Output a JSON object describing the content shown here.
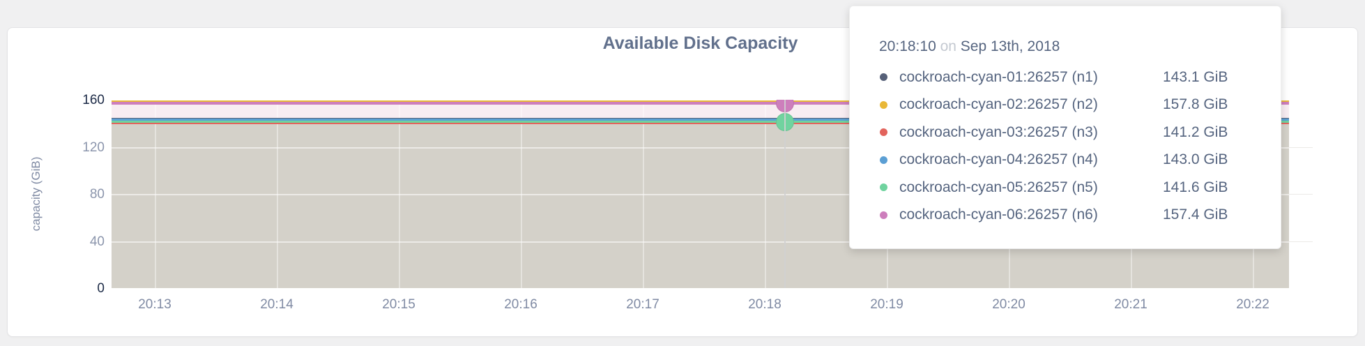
{
  "chart": {
    "title": "Available Disk Capacity",
    "ylabel": "capacity (GiB)"
  },
  "chart_data": {
    "type": "area",
    "title": "Available Disk Capacity",
    "xlabel": "",
    "ylabel": "capacity (GiB)",
    "ylim": [
      0,
      160
    ],
    "y_ticks": [
      160,
      120,
      80,
      40,
      0
    ],
    "x_ticks": [
      "20:13",
      "20:14",
      "20:15",
      "20:16",
      "20:17",
      "20:18",
      "20:19",
      "20:20",
      "20:21",
      "20:22"
    ],
    "grid": true,
    "legend_position": "tooltip-only",
    "series": [
      {
        "name": "cockroach-cyan-01:26257 (n1)",
        "node": "n1",
        "color": "#566078",
        "value_gib": 143.1
      },
      {
        "name": "cockroach-cyan-02:26257 (n2)",
        "node": "n2",
        "color": "#e9b838",
        "value_gib": 157.8
      },
      {
        "name": "cockroach-cyan-03:26257 (n3)",
        "node": "n3",
        "color": "#e2635c",
        "value_gib": 141.2
      },
      {
        "name": "cockroach-cyan-04:26257 (n4)",
        "node": "n4",
        "color": "#5b9fd4",
        "value_gib": 143.0
      },
      {
        "name": "cockroach-cyan-05:26257 (n5)",
        "node": "n5",
        "color": "#70d39f",
        "value_gib": 141.6
      },
      {
        "name": "cockroach-cyan-06:26257 (n6)",
        "node": "n6",
        "color": "#cd7ebc",
        "value_gib": 157.4
      }
    ],
    "series_shape": "flat-constant-across-window",
    "hover": {
      "time": "20:18:10",
      "date": "Sep 13th, 2018",
      "x_tick": "20:18",
      "seconds_past_tick": 10,
      "marker_series": [
        "cockroach-cyan-06:26257 (n6)",
        "cockroach-cyan-05:26257 (n5)"
      ]
    }
  },
  "tooltip": {
    "time": "20:18:10",
    "on_word": "on",
    "date": "Sep 13th, 2018",
    "rows": [
      {
        "label": "cockroach-cyan-01:26257 (n1)",
        "value": "143.1 GiB",
        "color": "#566078"
      },
      {
        "label": "cockroach-cyan-02:26257 (n2)",
        "value": "157.8 GiB",
        "color": "#e9b838"
      },
      {
        "label": "cockroach-cyan-03:26257 (n3)",
        "value": "141.2 GiB",
        "color": "#e2635c"
      },
      {
        "label": "cockroach-cyan-04:26257 (n4)",
        "value": "143.0 GiB",
        "color": "#5b9fd4"
      },
      {
        "label": "cockroach-cyan-05:26257 (n5)",
        "value": "141.6 GiB",
        "color": "#70d39f"
      },
      {
        "label": "cockroach-cyan-06:26257 (n6)",
        "value": "157.4 GiB",
        "color": "#cd7ebc"
      }
    ]
  },
  "colors": {
    "fill_overlap_gray": "#d4d1c9",
    "fill_pink_band": "#f8edf2",
    "axis_maxmin_text": "#1c2a46",
    "axis_text": "#8b95ac",
    "title_text": "#61708c",
    "crosshair": "#d0d0d0"
  }
}
